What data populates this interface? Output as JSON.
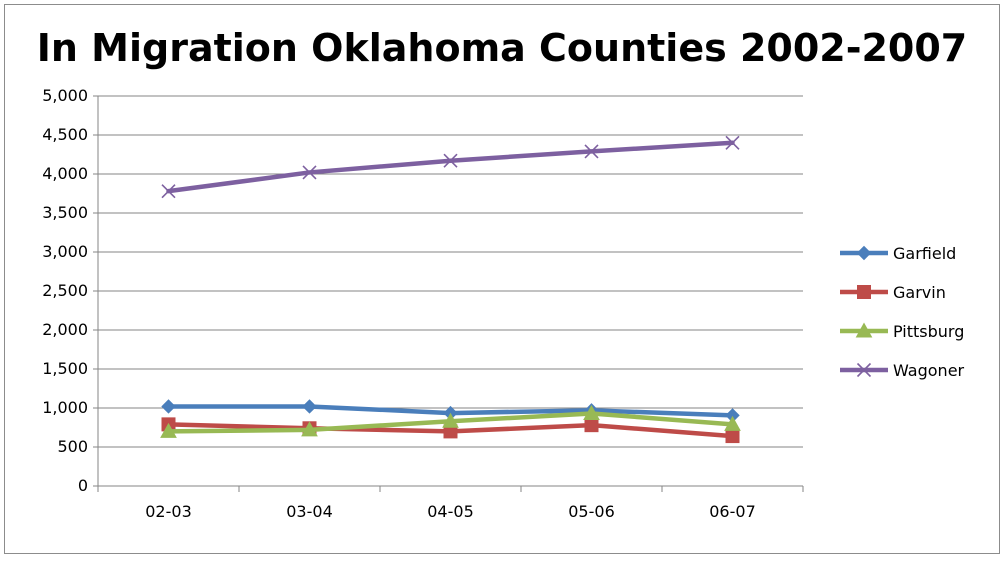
{
  "chart_data": {
    "type": "line",
    "title": "In Migration Oklahoma Counties 2002-2007",
    "xlabel": "",
    "ylabel": "",
    "categories": [
      "02-03",
      "03-04",
      "04-05",
      "05-06",
      "06-07"
    ],
    "ylim": [
      0,
      5000
    ],
    "yticks": [
      0,
      500,
      1000,
      1500,
      2000,
      2500,
      3000,
      3500,
      4000,
      4500,
      5000
    ],
    "ytick_labels": [
      "0",
      "500",
      "1,000",
      "1,500",
      "2,000",
      "2,500",
      "3,000",
      "3,500",
      "4,000",
      "4,500",
      "5,000"
    ],
    "grid": true,
    "legend_position": "right",
    "series": [
      {
        "name": "Garfield",
        "values": [
          1020,
          1020,
          935,
          970,
          905
        ],
        "color": "#4a7ebb",
        "marker": "diamond"
      },
      {
        "name": "Garvin",
        "values": [
          790,
          740,
          700,
          780,
          640
        ],
        "color": "#be4b48",
        "marker": "square"
      },
      {
        "name": "Pittsburg",
        "values": [
          700,
          720,
          830,
          930,
          790
        ],
        "color": "#98b954",
        "marker": "triangle"
      },
      {
        "name": "Wagoner",
        "values": [
          3780,
          4020,
          4170,
          4290,
          4400
        ],
        "color": "#7d60a0",
        "marker": "x"
      }
    ]
  }
}
